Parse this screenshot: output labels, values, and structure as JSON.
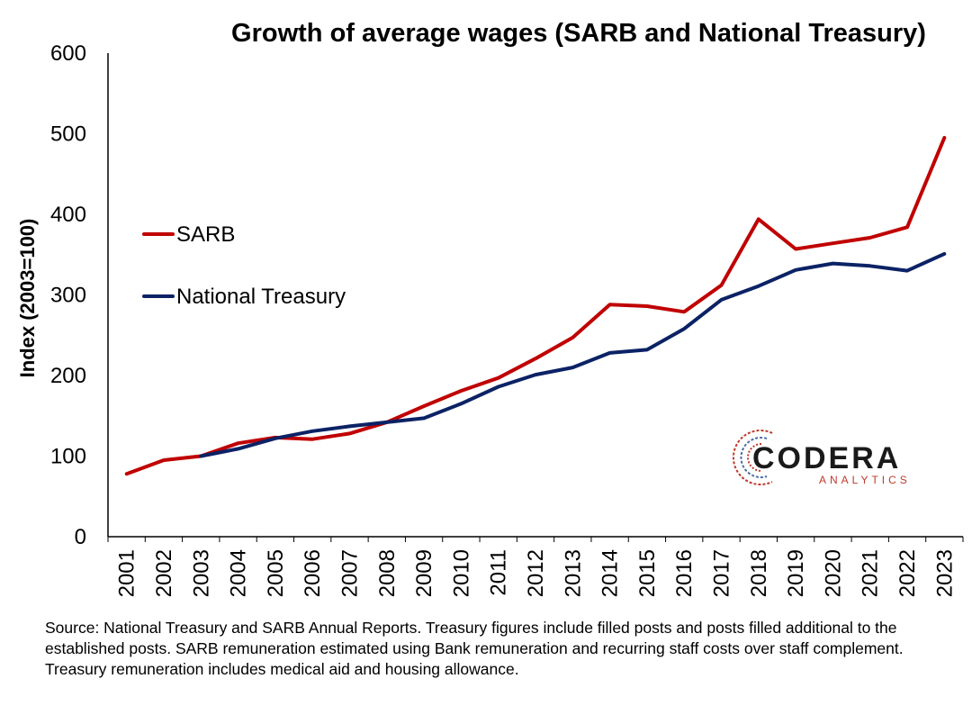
{
  "chart_data": {
    "type": "line",
    "title": "Growth of average wages (SARB and National Treasury)",
    "xlabel": "",
    "ylabel": "Index (2003=100)",
    "ylim": [
      0,
      600
    ],
    "yticks": [
      0,
      100,
      200,
      300,
      400,
      500,
      600
    ],
    "grid": false,
    "legend_position": "left",
    "categories": [
      "2001",
      "2002",
      "2003",
      "2004",
      "2005",
      "2006",
      "2007",
      "2008",
      "2009",
      "2010",
      "2011",
      "2012",
      "2013",
      "2014",
      "2015",
      "2016",
      "2017",
      "2018",
      "2019",
      "2020",
      "2021",
      "2022",
      "2023"
    ],
    "series": [
      {
        "name": "SARB",
        "color": "#c00000",
        "values": [
          78,
          95,
          100,
          116,
          123,
          121,
          128,
          142,
          162,
          181,
          197,
          221,
          247,
          288,
          286,
          279,
          312,
          394,
          357,
          364,
          371,
          384,
          495
        ]
      },
      {
        "name": "National Treasury",
        "color": "#0b2265",
        "values": [
          null,
          null,
          100,
          109,
          122,
          131,
          137,
          142,
          147,
          165,
          186,
          201,
          210,
          228,
          232,
          258,
          294,
          311,
          331,
          339,
          336,
          330,
          351
        ]
      }
    ]
  },
  "logo": {
    "name": "CODERA",
    "sub": "ANALYTICS"
  },
  "source_note": "Source: National Treasury and SARB Annual Reports. Treasury figures include filled posts and posts filled additional to the established posts. SARB remuneration estimated using Bank remuneration and recurring staff costs over staff complement. Treasury remuneration includes medical aid and housing allowance."
}
